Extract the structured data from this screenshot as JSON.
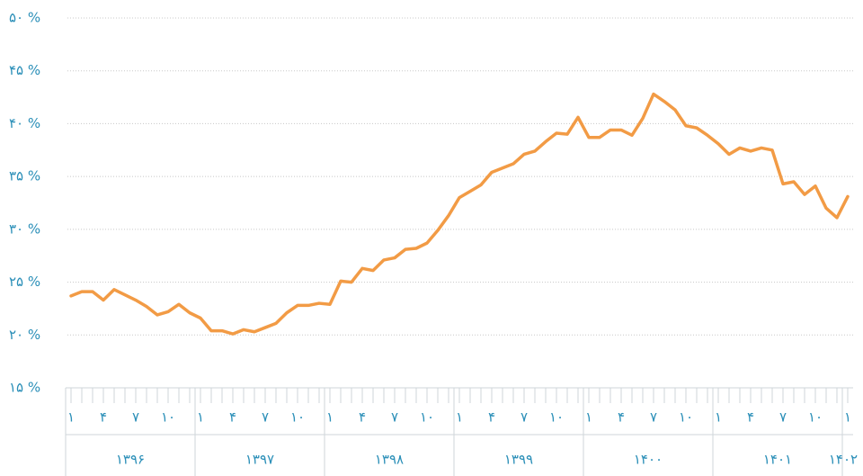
{
  "chart_data": {
    "type": "line",
    "categories": [
      "۱",
      null,
      null,
      "۴",
      null,
      null,
      "۷",
      null,
      null,
      "۱۰",
      null,
      null,
      "۱",
      null,
      null,
      "۴",
      null,
      null,
      "۷",
      null,
      null,
      "۱۰",
      null,
      null,
      "۱",
      null,
      null,
      "۴",
      null,
      null,
      "۷",
      null,
      null,
      "۱۰",
      null,
      null,
      "۱",
      null,
      null,
      "۴",
      null,
      null,
      "۷",
      null,
      null,
      "۱۰",
      null,
      null,
      "۱",
      null,
      null,
      "۴",
      null,
      null,
      "۷",
      null,
      null,
      "۱۰",
      null,
      null,
      "۱",
      null,
      null,
      "۴",
      null,
      null,
      "۷",
      null,
      null,
      "۱۰",
      null,
      null,
      "۱"
    ],
    "years": [
      "۱۳۹۶",
      "۱۳۹۷",
      "۱۳۹۸",
      "۱۳۹۹",
      "۱۴۰۰",
      "۱۴۰۱",
      "۱۴۰۲"
    ],
    "color": "#f29b45",
    "values": [
      23.7,
      24.1,
      24.1,
      23.3,
      24.3,
      23.8,
      23.3,
      22.7,
      21.9,
      22.2,
      22.9,
      22.1,
      21.6,
      20.4,
      20.4,
      20.1,
      20.5,
      20.3,
      20.7,
      21.1,
      22.1,
      22.8,
      22.8,
      23.0,
      22.9,
      25.1,
      25.0,
      26.3,
      26.1,
      27.1,
      27.3,
      28.1,
      28.2,
      28.7,
      29.9,
      31.3,
      33.0,
      33.6,
      34.2,
      35.4,
      35.8,
      36.2,
      37.1,
      37.4,
      38.3,
      39.1,
      39.0,
      40.6,
      38.7,
      38.7,
      39.4,
      39.4,
      38.9,
      40.5,
      42.8,
      42.1,
      41.3,
      39.8,
      39.6,
      38.9,
      38.1,
      37.1,
      37.7,
      37.4,
      37.7,
      37.5,
      34.3,
      34.5,
      33.3,
      34.1,
      32.0,
      31.1,
      33.1
    ],
    "ylim": [
      15,
      50
    ],
    "yticks": [
      {
        "value": 15,
        "label": "۱۵ %"
      },
      {
        "value": 20,
        "label": "۲۰ %"
      },
      {
        "value": 25,
        "label": "۲۵ %"
      },
      {
        "value": 30,
        "label": "۳۰ %"
      },
      {
        "value": 35,
        "label": "۳۵ %"
      },
      {
        "value": 40,
        "label": "۴۰ %"
      },
      {
        "value": 45,
        "label": "۴۵ %"
      },
      {
        "value": 50,
        "label": "۵۰ %"
      }
    ],
    "grid": true
  }
}
